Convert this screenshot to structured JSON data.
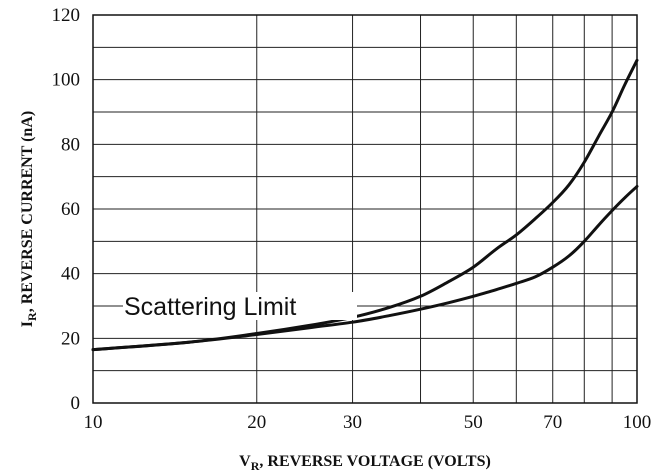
{
  "chart_data": {
    "type": "line",
    "x_scale": "log",
    "xlim": [
      10,
      100
    ],
    "ylim": [
      0,
      120
    ],
    "x_ticks": [
      10,
      20,
      30,
      50,
      70,
      100
    ],
    "y_ticks": [
      0,
      20,
      40,
      60,
      80,
      100,
      120
    ],
    "x_grid": [
      10,
      20,
      30,
      40,
      50,
      60,
      70,
      80,
      90,
      100
    ],
    "y_grid": [
      0,
      10,
      20,
      30,
      40,
      50,
      60,
      70,
      80,
      90,
      100,
      110,
      120
    ],
    "grid": true,
    "xlabel": {
      "main": "V",
      "sub": "R",
      "rest": ", REVERSE VOLTAGE (VOLTS)"
    },
    "ylabel": {
      "main": "I",
      "sub": "R",
      "rest": ", REVERSE CURRENT (nA)"
    },
    "annotation": "Scattering Limit",
    "series": [
      {
        "x": [
          10,
          15,
          20,
          25,
          30,
          35,
          40,
          45,
          50,
          55,
          60,
          65,
          70,
          75,
          80,
          85,
          90,
          95,
          100
        ],
        "y": [
          16.5,
          18.8,
          21.5,
          24,
          26.5,
          29.5,
          33,
          37.5,
          42,
          47.5,
          52,
          57,
          62,
          67.5,
          74.5,
          82.5,
          90,
          98.5,
          106
        ]
      },
      {
        "x": [
          10,
          15,
          20,
          25,
          30,
          35,
          40,
          45,
          50,
          55,
          60,
          65,
          70,
          75,
          80,
          85,
          90,
          95,
          100
        ],
        "y": [
          16.5,
          18.8,
          21.2,
          23.3,
          25,
          27,
          29,
          31,
          33,
          35,
          37,
          39,
          42,
          45.5,
          50,
          55,
          59.5,
          63.5,
          67
        ]
      }
    ]
  }
}
